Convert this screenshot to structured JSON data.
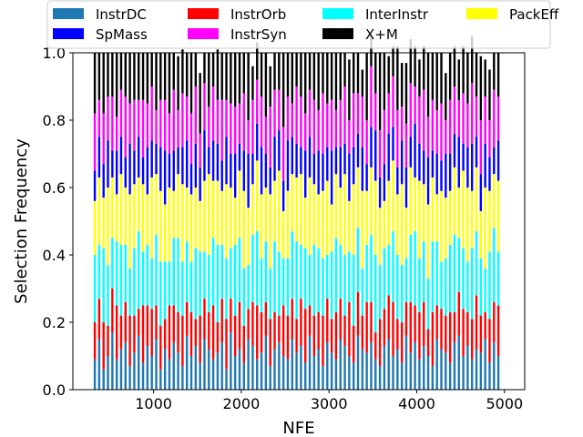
{
  "chart_data": {
    "type": "bar",
    "stacked": true,
    "title": "",
    "xlabel": "NFE",
    "ylabel": "Selection Frequency",
    "xlim": [
      80,
      5230
    ],
    "ylim": [
      0,
      1
    ],
    "x_ticks": [
      1000,
      2000,
      3000,
      4000,
      5000
    ],
    "x_tick_labels": [
      "1000",
      "2000",
      "3000",
      "4000",
      "5000"
    ],
    "y_ticks": [
      0,
      0.2,
      0.4,
      0.6,
      0.8,
      1.0
    ],
    "y_tick_labels": [
      "0.0",
      "0.2",
      "0.4",
      "0.6",
      "0.8",
      "1.0"
    ],
    "grid": false,
    "legend_position": "top",
    "legend_columns": 4,
    "x": [
      330,
      380,
      430,
      480,
      530,
      580,
      630,
      680,
      730,
      780,
      830,
      880,
      930,
      980,
      1030,
      1080,
      1130,
      1180,
      1230,
      1280,
      1330,
      1380,
      1430,
      1480,
      1530,
      1580,
      1630,
      1680,
      1730,
      1780,
      1830,
      1880,
      1930,
      1980,
      2030,
      2080,
      2130,
      2180,
      2230,
      2280,
      2330,
      2380,
      2430,
      2480,
      2530,
      2580,
      2630,
      2680,
      2730,
      2780,
      2830,
      2880,
      2930,
      2980,
      3030,
      3080,
      3130,
      3180,
      3230,
      3280,
      3330,
      3380,
      3430,
      3480,
      3530,
      3580,
      3630,
      3680,
      3730,
      3780,
      3830,
      3880,
      3930,
      3980,
      4030,
      4080,
      4130,
      4180,
      4230,
      4280,
      4330,
      4380,
      4430,
      4480,
      4530,
      4580,
      4630,
      4680,
      4730,
      4780,
      4830,
      4880,
      4930
    ],
    "series": [
      {
        "name": "InstrDC",
        "color": "#1f77b4",
        "values": [
          0.09,
          0.15,
          0.06,
          0.1,
          0.17,
          0.09,
          0.12,
          0.14,
          0.07,
          0.11,
          0.16,
          0.08,
          0.13,
          0.1,
          0.15,
          0.06,
          0.12,
          0.09,
          0.14,
          0.11,
          0.07,
          0.16,
          0.1,
          0.13,
          0.08,
          0.15,
          0.12,
          0.09,
          0.11,
          0.14,
          0.06,
          0.17,
          0.1,
          0.12,
          0.08,
          0.15,
          0.13,
          0.09,
          0.11,
          0.16,
          0.07,
          0.12,
          0.14,
          0.1,
          0.09,
          0.15,
          0.11,
          0.13,
          0.08,
          0.16,
          0.1,
          0.12,
          0.07,
          0.14,
          0.11,
          0.09,
          0.15,
          0.13,
          0.1,
          0.08,
          0.16,
          0.12,
          0.11,
          0.14,
          0.09,
          0.07,
          0.13,
          0.15,
          0.1,
          0.12,
          0.08,
          0.16,
          0.11,
          0.14,
          0.09,
          0.13,
          0.1,
          0.07,
          0.15,
          0.12,
          0.11,
          0.08,
          0.14,
          0.16,
          0.1,
          0.13,
          0.09,
          0.12,
          0.11,
          0.15,
          0.08,
          0.14,
          0.1
        ]
      },
      {
        "name": "InstrOrb",
        "color": "#ff0000",
        "values": [
          0.11,
          0.12,
          0.14,
          0.09,
          0.13,
          0.16,
          0.1,
          0.12,
          0.15,
          0.11,
          0.08,
          0.17,
          0.12,
          0.14,
          0.1,
          0.13,
          0.09,
          0.16,
          0.11,
          0.12,
          0.15,
          0.1,
          0.13,
          0.08,
          0.14,
          0.12,
          0.11,
          0.16,
          0.09,
          0.13,
          0.15,
          0.1,
          0.12,
          0.14,
          0.11,
          0.09,
          0.13,
          0.16,
          0.12,
          0.1,
          0.14,
          0.11,
          0.08,
          0.15,
          0.13,
          0.12,
          0.1,
          0.14,
          0.16,
          0.09,
          0.12,
          0.11,
          0.15,
          0.13,
          0.1,
          0.14,
          0.12,
          0.09,
          0.16,
          0.11,
          0.13,
          0.1,
          0.15,
          0.12,
          0.08,
          0.14,
          0.11,
          0.13,
          0.16,
          0.09,
          0.12,
          0.1,
          0.15,
          0.11,
          0.14,
          0.13,
          0.08,
          0.16,
          0.1,
          0.12,
          0.11,
          0.15,
          0.09,
          0.13,
          0.14,
          0.1,
          0.12,
          0.16,
          0.11,
          0.08,
          0.13,
          0.12,
          0.15
        ]
      },
      {
        "name": "InterInstr",
        "color": "#00ffff",
        "values": [
          0.2,
          0.16,
          0.22,
          0.18,
          0.15,
          0.19,
          0.21,
          0.17,
          0.14,
          0.2,
          0.23,
          0.16,
          0.18,
          0.15,
          0.21,
          0.19,
          0.17,
          0.13,
          0.2,
          0.22,
          0.16,
          0.18,
          0.15,
          0.21,
          0.19,
          0.14,
          0.17,
          0.2,
          0.23,
          0.16,
          0.18,
          0.15,
          0.21,
          0.19,
          0.17,
          0.13,
          0.2,
          0.22,
          0.16,
          0.18,
          0.15,
          0.21,
          0.19,
          0.14,
          0.17,
          0.2,
          0.23,
          0.16,
          0.18,
          0.15,
          0.21,
          0.19,
          0.17,
          0.13,
          0.2,
          0.22,
          0.16,
          0.18,
          0.15,
          0.21,
          0.19,
          0.14,
          0.17,
          0.2,
          0.23,
          0.16,
          0.18,
          0.15,
          0.21,
          0.19,
          0.17,
          0.13,
          0.2,
          0.22,
          0.16,
          0.18,
          0.15,
          0.21,
          0.19,
          0.14,
          0.17,
          0.2,
          0.23,
          0.16,
          0.18,
          0.15,
          0.21,
          0.19,
          0.17,
          0.13,
          0.2,
          0.22,
          0.16
        ]
      },
      {
        "name": "PackEff",
        "color": "#ffff00",
        "values": [
          0.16,
          0.2,
          0.15,
          0.23,
          0.18,
          0.14,
          0.21,
          0.17,
          0.22,
          0.19,
          0.16,
          0.2,
          0.15,
          0.24,
          0.18,
          0.21,
          0.17,
          0.22,
          0.14,
          0.19,
          0.23,
          0.16,
          0.2,
          0.18,
          0.15,
          0.21,
          0.24,
          0.17,
          0.19,
          0.16,
          0.22,
          0.18,
          0.14,
          0.2,
          0.23,
          0.17,
          0.15,
          0.21,
          0.19,
          0.16,
          0.22,
          0.18,
          0.24,
          0.14,
          0.2,
          0.17,
          0.19,
          0.21,
          0.15,
          0.23,
          0.18,
          0.16,
          0.2,
          0.22,
          0.14,
          0.19,
          0.17,
          0.24,
          0.15,
          0.21,
          0.18,
          0.23,
          0.16,
          0.2,
          0.22,
          0.17,
          0.14,
          0.19,
          0.21,
          0.18,
          0.24,
          0.15,
          0.2,
          0.16,
          0.23,
          0.17,
          0.22,
          0.19,
          0.14,
          0.21,
          0.18,
          0.16,
          0.2,
          0.15,
          0.23,
          0.22,
          0.17,
          0.19,
          0.14,
          0.24,
          0.18,
          0.16,
          0.21
        ]
      },
      {
        "name": "SpMass",
        "color": "#0000ff",
        "values": [
          0.09,
          0.12,
          0.1,
          0.14,
          0.08,
          0.13,
          0.11,
          0.09,
          0.15,
          0.1,
          0.12,
          0.08,
          0.14,
          0.11,
          0.09,
          0.13,
          0.16,
          0.1,
          0.12,
          0.08,
          0.11,
          0.14,
          0.09,
          0.13,
          0.1,
          0.15,
          0.08,
          0.12,
          0.11,
          0.09,
          0.14,
          0.1,
          0.13,
          0.08,
          0.12,
          0.16,
          0.09,
          0.11,
          0.14,
          0.1,
          0.08,
          0.13,
          0.12,
          0.09,
          0.15,
          0.11,
          0.1,
          0.08,
          0.14,
          0.12,
          0.09,
          0.13,
          0.11,
          0.1,
          0.16,
          0.08,
          0.12,
          0.09,
          0.14,
          0.11,
          0.1,
          0.13,
          0.08,
          0.12,
          0.15,
          0.09,
          0.11,
          0.14,
          0.1,
          0.08,
          0.13,
          0.12,
          0.09,
          0.16,
          0.11,
          0.1,
          0.14,
          0.08,
          0.12,
          0.09,
          0.13,
          0.11,
          0.1,
          0.15,
          0.08,
          0.12,
          0.14,
          0.09,
          0.11,
          0.13,
          0.1,
          0.08,
          0.12
        ]
      },
      {
        "name": "InstrSyn",
        "color": "#ff00ff",
        "values": [
          0.17,
          0.11,
          0.15,
          0.13,
          0.16,
          0.1,
          0.14,
          0.18,
          0.12,
          0.15,
          0.11,
          0.17,
          0.13,
          0.16,
          0.1,
          0.14,
          0.15,
          0.12,
          0.18,
          0.11,
          0.16,
          0.13,
          0.15,
          0.17,
          0.1,
          0.14,
          0.12,
          0.16,
          0.13,
          0.18,
          0.11,
          0.15,
          0.14,
          0.12,
          0.17,
          0.1,
          0.16,
          0.13,
          0.15,
          0.11,
          0.18,
          0.14,
          0.12,
          0.16,
          0.13,
          0.1,
          0.17,
          0.15,
          0.11,
          0.14,
          0.16,
          0.12,
          0.18,
          0.13,
          0.15,
          0.11,
          0.14,
          0.17,
          0.1,
          0.16,
          0.12,
          0.15,
          0.13,
          0.18,
          0.11,
          0.14,
          0.16,
          0.12,
          0.15,
          0.17,
          0.1,
          0.13,
          0.16,
          0.11,
          0.14,
          0.18,
          0.12,
          0.15,
          0.13,
          0.17,
          0.1,
          0.16,
          0.14,
          0.11,
          0.15,
          0.13,
          0.18,
          0.12,
          0.16,
          0.14,
          0.11,
          0.17,
          0.13
        ]
      },
      {
        "name": "X+M",
        "color": "#000000",
        "values": [
          0.18,
          0.14,
          0.18,
          0.13,
          0.13,
          0.19,
          0.11,
          0.13,
          0.15,
          0.14,
          0.14,
          0.14,
          0.15,
          0.1,
          0.17,
          0.14,
          0.14,
          0.18,
          0.11,
          0.16,
          0.13,
          0.13,
          0.18,
          0.1,
          0.18,
          0.09,
          0.16,
          0.1,
          0.15,
          0.14,
          0.14,
          0.15,
          0.16,
          0.15,
          0.12,
          0.2,
          0.1,
          0.11,
          0.13,
          0.19,
          0.12,
          0.11,
          0.11,
          0.22,
          0.13,
          0.15,
          0.1,
          0.13,
          0.18,
          0.11,
          0.14,
          0.17,
          0.12,
          0.15,
          0.14,
          0.17,
          0.14,
          0.1,
          0.18,
          0.12,
          0.12,
          0.08,
          0.2,
          0.09,
          0.12,
          0.23,
          0.17,
          0.11,
          0.09,
          0.19,
          0.13,
          0.18,
          0.13,
          0.12,
          0.11,
          0.13,
          0.19,
          0.14,
          0.17,
          0.15,
          0.14,
          0.14,
          0.12,
          0.12,
          0.14,
          0.15,
          0.14,
          0.13,
          0.19,
          0.11,
          0.15,
          0.11,
          0.13
        ]
      }
    ]
  }
}
